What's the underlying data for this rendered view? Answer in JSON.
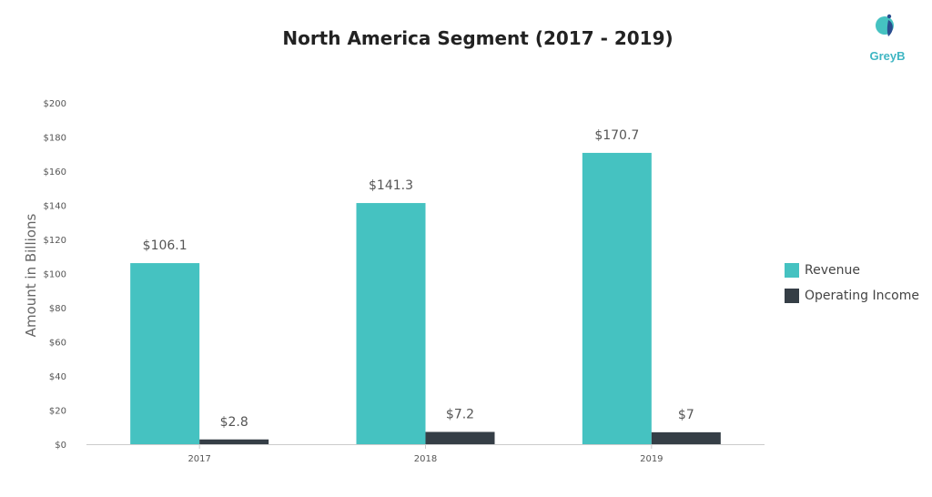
{
  "chart_data": {
    "type": "bar",
    "title": "North America Segment (2017 - 2019)",
    "ylabel": "Amount in Billions",
    "xlabel": "",
    "categories": [
      "2017",
      "2018",
      "2019"
    ],
    "ylim": [
      0,
      200
    ],
    "yticks": [
      0,
      20,
      40,
      60,
      80,
      100,
      120,
      140,
      160,
      180,
      200
    ],
    "ytick_labels": [
      "$0",
      "$20",
      "$40",
      "$60",
      "$80",
      "$100",
      "$120",
      "$140",
      "$160",
      "$180",
      "$200"
    ],
    "grid": false,
    "legend_position": "right",
    "series": [
      {
        "name": "Revenue",
        "color": "#45c2c1",
        "values": [
          106.1,
          141.3,
          170.7
        ],
        "labels": [
          "$106.1",
          "$141.3",
          "$170.7"
        ]
      },
      {
        "name": "Operating Income",
        "color": "#353e46",
        "values": [
          2.8,
          7.2,
          7
        ],
        "labels": [
          "$2.8",
          "$7.2",
          "$7"
        ]
      }
    ]
  },
  "logo": {
    "text": "GreyB",
    "color": "#3fb6c3"
  }
}
